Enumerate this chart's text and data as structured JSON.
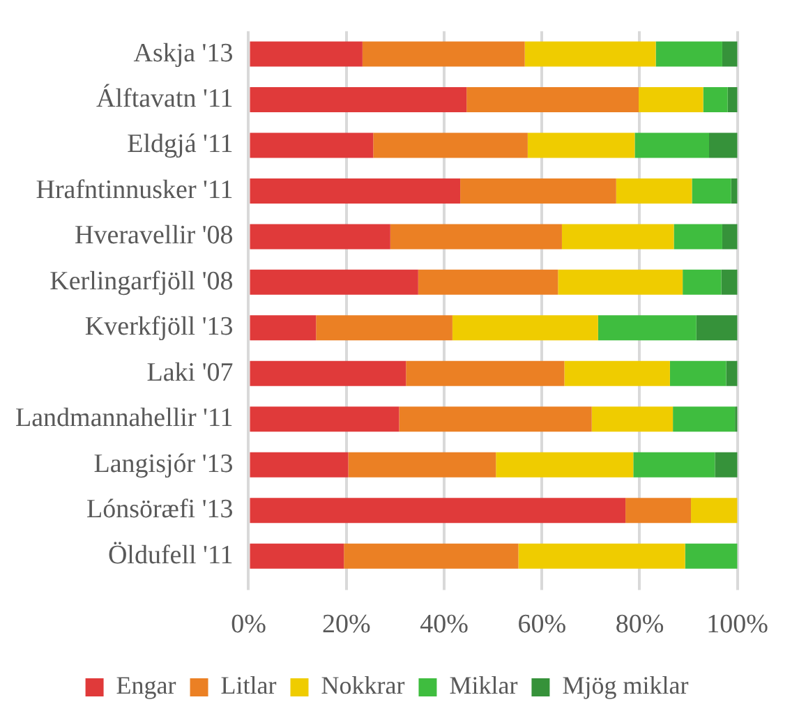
{
  "chart_data": {
    "type": "bar",
    "orientation": "horizontal",
    "stacked": true,
    "categories": [
      "Askja '13",
      "Álftavatn '11",
      "Eldgjá '11",
      "Hrafntinnusker '11",
      "Hveravellir '08",
      "Kerlingarfjöll '08",
      "Kverkfjöll '13",
      "Laki '07",
      "Landmannahellir '11",
      "Langisjór '13",
      "Lónsöræfi '13",
      "Öldufell '11"
    ],
    "series": [
      {
        "name": "Engar",
        "color": "#e03a3a",
        "values": [
          23.3,
          44.6,
          25.5,
          43.3,
          29.0,
          34.7,
          13.8,
          32.2,
          30.8,
          20.4,
          77.1,
          19.5
        ]
      },
      {
        "name": "Litlar",
        "color": "#eb8024",
        "values": [
          33.2,
          35.2,
          31.6,
          31.9,
          35.1,
          28.6,
          27.9,
          32.4,
          39.4,
          30.2,
          13.4,
          35.7
        ]
      },
      {
        "name": "Nokkrar",
        "color": "#efcc00",
        "values": [
          26.8,
          13.2,
          21.9,
          15.5,
          22.9,
          25.5,
          29.8,
          21.6,
          16.6,
          28.1,
          9.5,
          34.1
        ]
      },
      {
        "name": "Miklar",
        "color": "#3fbd3f",
        "values": [
          13.6,
          5.0,
          15.2,
          8.0,
          9.9,
          7.9,
          20.1,
          11.5,
          12.7,
          16.7,
          0,
          10.7
        ]
      },
      {
        "name": "Mjög miklar",
        "color": "#36923a",
        "values": [
          3.1,
          2.0,
          5.8,
          1.3,
          3.1,
          3.3,
          8.4,
          2.3,
          0.5,
          4.6,
          0,
          0
        ]
      }
    ],
    "xlim": [
      0,
      100
    ],
    "xticks": [
      {
        "value": 0,
        "label": "0%"
      },
      {
        "value": 20,
        "label": "20%"
      },
      {
        "value": 40,
        "label": "40%"
      },
      {
        "value": 60,
        "label": "60%"
      },
      {
        "value": 80,
        "label": "80%"
      },
      {
        "value": 100,
        "label": "100%"
      }
    ],
    "grid": "x",
    "legend": "bottom"
  }
}
